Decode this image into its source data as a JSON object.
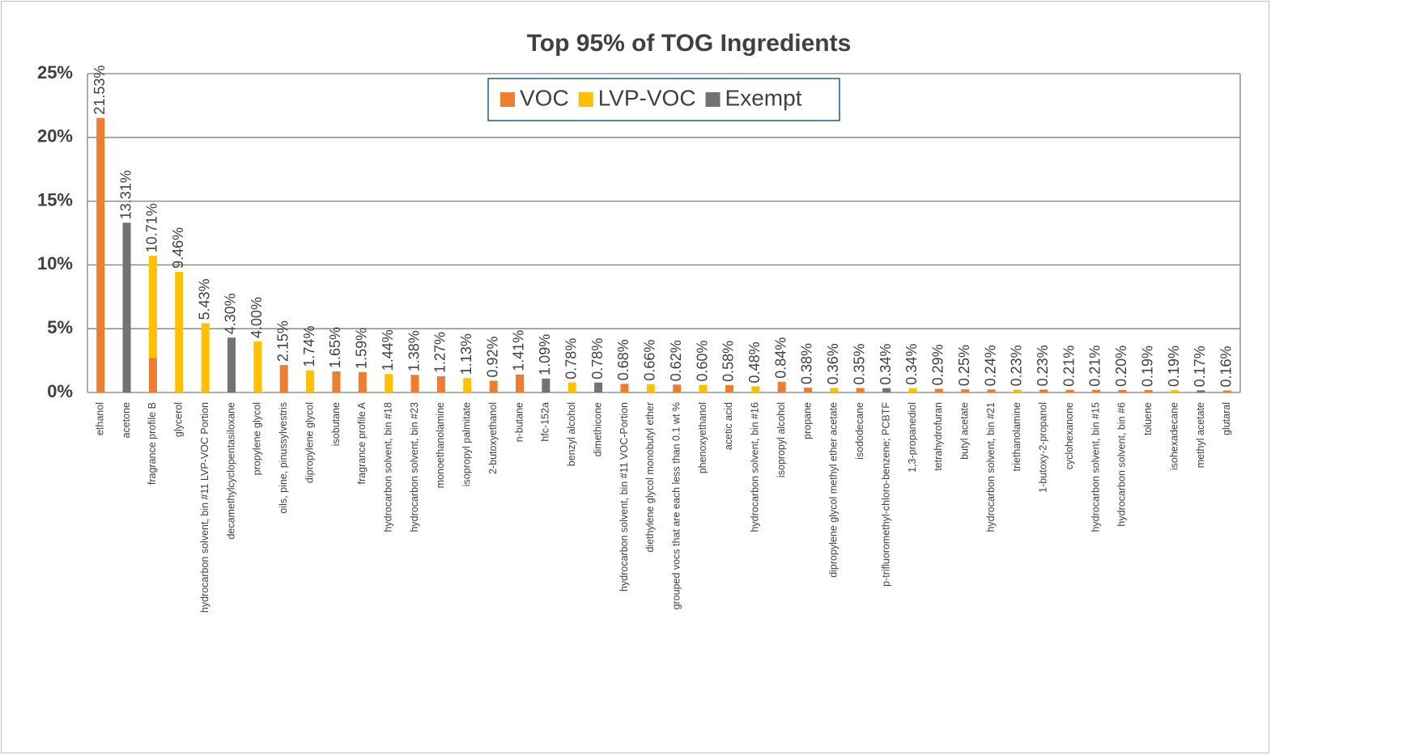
{
  "chart_data": {
    "type": "stacked_bar",
    "title": "Top 95% of TOG Ingredients",
    "categories": [
      "ethanol",
      "acetone",
      "fragrance profile B",
      "glycerol",
      "hydrocarbon solvent, bin #11 LVP-VOC Portion",
      "decamethylcyclopentasiloxane",
      "propylene glycol",
      "oils, pine, pinussylvestris",
      "dipropylene glycol",
      "isobutane",
      "fragrance profile A",
      "hydrocarbon solvent, bin #18",
      "hydrocarbon solvent, bin #23",
      "monoethanolamine",
      "isopropyl palmitate",
      "2-butoxyethanol",
      "n-butane",
      "hfc-152a",
      "benzyl alcohol",
      "dimethicone",
      "hydrocarbon solvent, bin #11 VOC-Portion",
      "diethylene glycol monobutyl ether",
      "grouped vocs that are each less than 0.1 wt %",
      "phenoxyethanol",
      "acetic acid",
      "hydrocarbon solvent, bin #16",
      "isopropyl alcohol",
      "propane",
      "dipropylene glycol methyl ether acetate",
      "isododecane",
      "p-trifluoromethyl-chloro-benzene; PCBTF",
      "1,3-propanediol",
      "tetrahydrofuran",
      "butyl acetate",
      "hydrocarbon solvent, bin #21",
      "triethanolamine",
      "1-butoxy-2-propanol",
      "cyclohexanone",
      "hydrocarbon solvent, bin #15",
      "hydrocarbon solvent, bin #6",
      "toluene",
      "isohexadecane",
      "methyl acetate",
      "glutaral"
    ],
    "series": [
      {
        "name": "VOC",
        "color": "#ED7D31",
        "values": [
          21.53,
          null,
          2.7,
          null,
          null,
          null,
          null,
          2.15,
          null,
          1.65,
          1.59,
          null,
          1.38,
          1.27,
          null,
          0.92,
          1.41,
          null,
          null,
          null,
          0.68,
          null,
          0.62,
          null,
          0.58,
          null,
          0.84,
          0.38,
          null,
          0.35,
          null,
          null,
          0.29,
          0.25,
          0.24,
          null,
          0.23,
          0.21,
          0.21,
          0.2,
          0.19,
          null,
          null,
          0.16
        ]
      },
      {
        "name": "LVP-VOC",
        "color": "#FFC000",
        "values": [
          null,
          null,
          8.01,
          9.46,
          5.43,
          null,
          4.0,
          null,
          1.74,
          null,
          null,
          1.44,
          null,
          null,
          1.13,
          null,
          null,
          null,
          0.78,
          null,
          null,
          0.66,
          null,
          0.6,
          null,
          0.48,
          null,
          null,
          0.36,
          null,
          null,
          0.34,
          null,
          null,
          null,
          0.23,
          null,
          null,
          null,
          null,
          null,
          0.19,
          null,
          null
        ]
      },
      {
        "name": "Exempt",
        "color": "#767171",
        "values": [
          null,
          13.31,
          null,
          null,
          null,
          4.3,
          null,
          null,
          null,
          null,
          null,
          null,
          null,
          null,
          null,
          null,
          null,
          1.09,
          null,
          0.78,
          null,
          null,
          null,
          null,
          null,
          null,
          null,
          null,
          null,
          null,
          0.34,
          null,
          null,
          null,
          null,
          null,
          null,
          null,
          null,
          null,
          null,
          null,
          0.17,
          null
        ]
      }
    ],
    "totals": [
      21.53,
      13.31,
      10.71,
      9.46,
      5.43,
      4.3,
      4.0,
      2.15,
      1.74,
      1.65,
      1.59,
      1.44,
      1.38,
      1.27,
      1.13,
      0.92,
      1.41,
      1.09,
      0.78,
      0.78,
      0.68,
      0.66,
      0.62,
      0.6,
      0.58,
      0.48,
      0.84,
      0.38,
      0.36,
      0.35,
      0.34,
      0.34,
      0.29,
      0.25,
      0.24,
      0.23,
      0.23,
      0.21,
      0.21,
      0.2,
      0.19,
      0.19,
      0.17,
      0.16
    ],
    "total_labels": [
      "21.53%",
      "13.31%",
      "10.71%",
      "9.46%",
      "5.43%",
      "4.30%",
      "4.00%",
      "2.15%",
      "1.74%",
      "1.65%",
      "1.59%",
      "1.44%",
      "1.38%",
      "1.27%",
      "1.13%",
      "0.92%",
      "1.41%",
      "1.09%",
      "0.78%",
      "0.78%",
      "0.68%",
      "0.66%",
      "0.62%",
      "0.60%",
      "0.58%",
      "0.48%",
      "0.84%",
      "0.38%",
      "0.36%",
      "0.35%",
      "0.34%",
      "0.34%",
      "0.29%",
      "0.25%",
      "0.24%",
      "0.23%",
      "0.23%",
      "0.21%",
      "0.21%",
      "0.20%",
      "0.19%",
      "0.19%",
      "0.17%",
      "0.16%"
    ],
    "ylim": [
      0,
      25
    ],
    "yticks": [
      {
        "value": 0,
        "label": "0%"
      },
      {
        "value": 5,
        "label": "5%"
      },
      {
        "value": 10,
        "label": "10%"
      },
      {
        "value": 15,
        "label": "15%"
      },
      {
        "value": 20,
        "label": "20%"
      },
      {
        "value": 25,
        "label": "25%"
      }
    ],
    "grid": true,
    "legend": "top"
  }
}
